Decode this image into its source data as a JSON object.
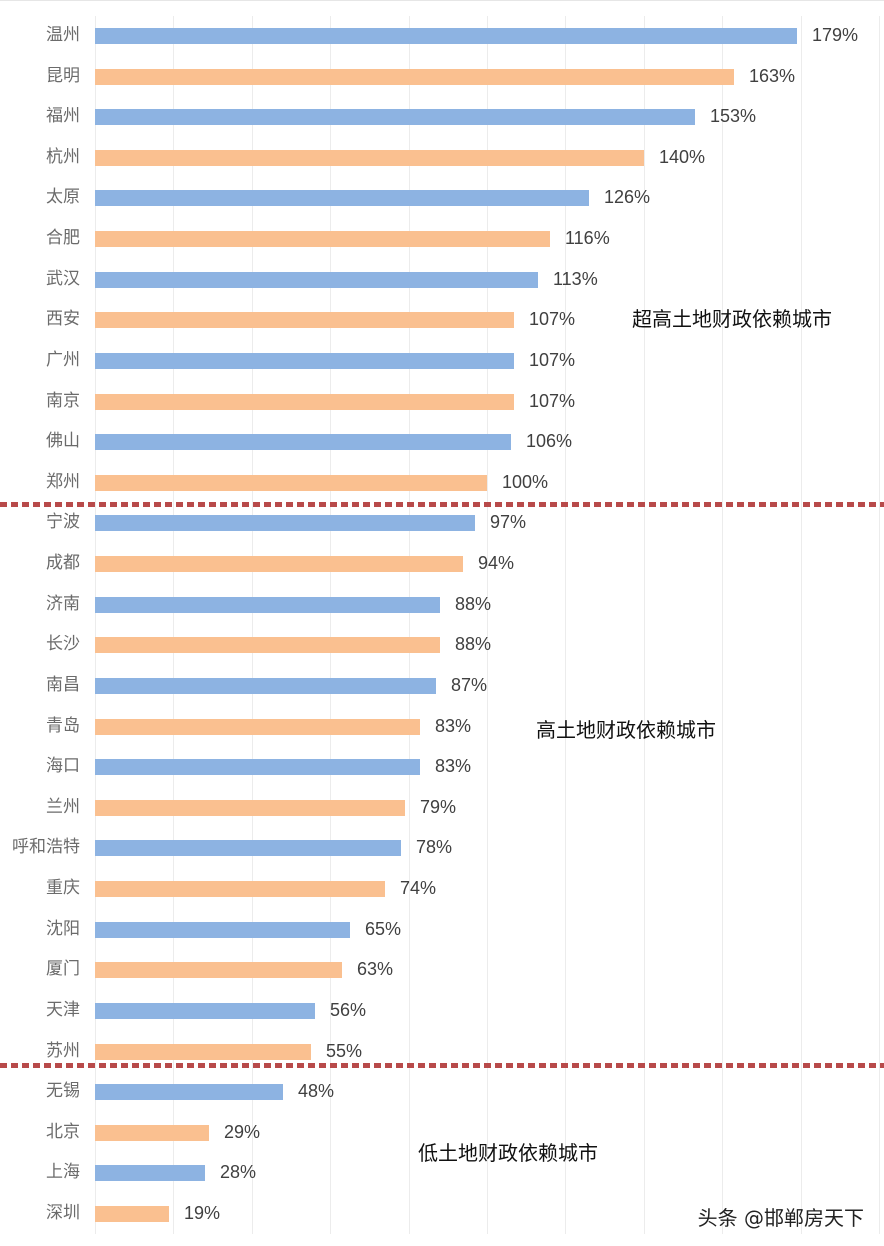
{
  "colors": {
    "blue": "#8db3e2",
    "orange": "#fac090",
    "divider": "#b84a4a",
    "grid": "#ececec"
  },
  "group_labels": [
    "超高土地财政依赖城市",
    "高土地财政依赖城市",
    "低土地财政依赖城市"
  ],
  "watermark": "头条 @邯郸房天下",
  "chart_data": {
    "type": "bar",
    "orientation": "horizontal",
    "title": "",
    "xlabel": "",
    "ylabel": "",
    "xlim": [
      0,
      200
    ],
    "grid_step": 20,
    "grid": true,
    "legend": null,
    "categories": [
      "温州",
      "昆明",
      "福州",
      "杭州",
      "太原",
      "合肥",
      "武汉",
      "西安",
      "广州",
      "南京",
      "佛山",
      "郑州",
      "宁波",
      "成都",
      "济南",
      "长沙",
      "南昌",
      "青岛",
      "海口",
      "兰州",
      "呼和浩特",
      "重庆",
      "沈阳",
      "厦门",
      "天津",
      "苏州",
      "无锡",
      "北京",
      "上海",
      "深圳"
    ],
    "values": [
      179,
      163,
      153,
      140,
      126,
      116,
      113,
      107,
      107,
      107,
      106,
      100,
      97,
      94,
      88,
      88,
      87,
      83,
      83,
      79,
      78,
      74,
      65,
      63,
      56,
      55,
      48,
      29,
      28,
      19
    ],
    "labels": [
      "179%",
      "163%",
      "153%",
      "140%",
      "126%",
      "116%",
      "113%",
      "107%",
      "107%",
      "107%",
      "106%",
      "100%",
      "97%",
      "94%",
      "88%",
      "88%",
      "87%",
      "83%",
      "83%",
      "79%",
      "78%",
      "74%",
      "65%",
      "63%",
      "56%",
      "55%",
      "48%",
      "29%",
      "28%",
      "19%"
    ],
    "bar_colors": "alternating blue/orange starting with blue",
    "annotations": [
      {
        "text": "超高土地财政依赖城市",
        "group_range": [
          "温州",
          "郑州"
        ]
      },
      {
        "text": "高土地财政依赖城市",
        "group_range": [
          "宁波",
          "苏州"
        ]
      },
      {
        "text": "低土地财政依赖城市",
        "group_range": [
          "无锡",
          "深圳"
        ]
      }
    ],
    "dividers_after": [
      "郑州",
      "苏州"
    ]
  }
}
